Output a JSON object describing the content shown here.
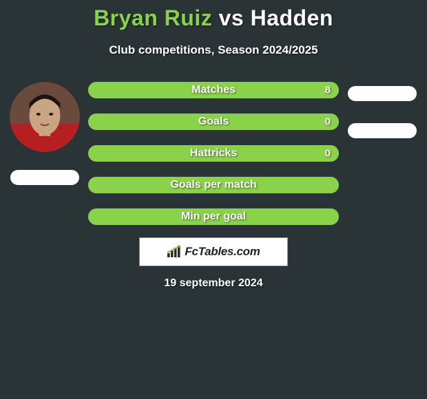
{
  "title_a": "Bryan Ruiz",
  "title_vs": " vs ",
  "title_b": "Hadden",
  "subtitle": "Club competitions, Season 2024/2025",
  "date": "19 september 2024",
  "brand": "FcTables.com",
  "colors": {
    "background": "#2a3437",
    "bar_bg": "#636a6c",
    "bar_fg": "#8bd24b",
    "accent": "#8bd24b",
    "text": "#ffffff",
    "logo_bg": "#ffffff",
    "logo_border": "#8a8f90",
    "avatar_bg": "#3d2d27"
  },
  "fonts": {
    "title_size": 32,
    "subtitle_size": 17,
    "bar_label_size": 16,
    "date_size": 16
  },
  "players": {
    "left": {
      "name": "Bryan Ruiz",
      "has_photo": true
    },
    "right": {
      "name": "Hadden",
      "has_photo": false
    }
  },
  "bars": [
    {
      "label": "Matches",
      "value": "8",
      "fill_pct": 100,
      "right_has_pill": true,
      "show_value": true
    },
    {
      "label": "Goals",
      "value": "0",
      "fill_pct": 100,
      "right_has_pill": true,
      "show_value": true
    },
    {
      "label": "Hattricks",
      "value": "0",
      "fill_pct": 100,
      "right_has_pill": false,
      "show_value": true
    },
    {
      "label": "Goals per match",
      "value": "",
      "fill_pct": 100,
      "right_has_pill": false,
      "show_value": false
    },
    {
      "label": "Min per goal",
      "value": "",
      "fill_pct": 100,
      "right_has_pill": false,
      "show_value": false
    }
  ]
}
